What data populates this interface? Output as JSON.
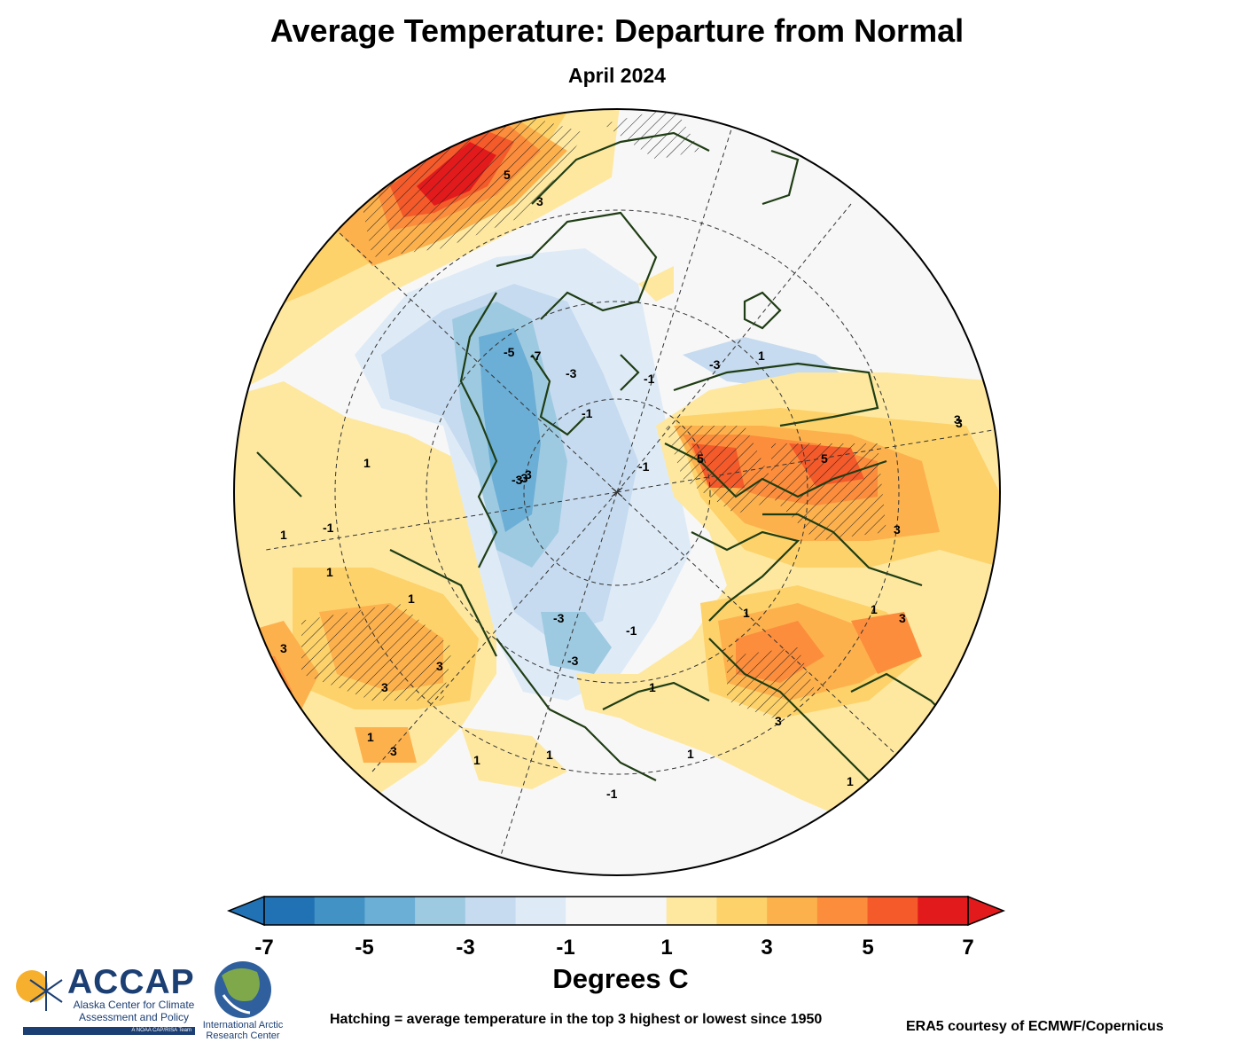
{
  "title": "Average Temperature: Departure from Normal",
  "subtitle": "April 2024",
  "colorbar": {
    "label": "Degrees C",
    "ticks": [
      "-7",
      "-5",
      "-3",
      "-1",
      "1",
      "3",
      "5",
      "7"
    ],
    "colors": [
      "#2171b5",
      "#4292c6",
      "#6baed6",
      "#9ecae1",
      "#c6dbef",
      "#deebf7",
      "#f7f7f7",
      "#f7f7f7",
      "#fee8a0",
      "#fdd26a",
      "#fdb14d",
      "#fc8d3c",
      "#f45a2a",
      "#e31a1c"
    ],
    "under_color": "#2171b5",
    "over_color": "#e31a1c"
  },
  "contour_labels": [
    "5",
    "3",
    "-5",
    "-7",
    "-3",
    "-1",
    "1",
    "3",
    "5",
    "5",
    "3",
    "1",
    "-3",
    "-3",
    "-1",
    "-1",
    "-3",
    "-3",
    "-1",
    "1",
    "1",
    "1",
    "-1",
    "1",
    "1",
    "3",
    "3",
    "3",
    "1",
    "3",
    "3",
    "1",
    "1",
    "-1",
    "1",
    "3",
    "1",
    "-3",
    "1",
    "3",
    "3"
  ],
  "hatching_note": "Hatching = average temperature in the top 3 highest or lowest since 1950",
  "credit": "ERA5 courtesy of ECMWF/Copernicus",
  "logos": {
    "accap_name": "ACCAP",
    "accap_full": "Alaska Center for Climate Assessment and Policy",
    "accap_tag": "A NOAA CAP/RISA Team",
    "iarc_name": "International Arctic Research Center"
  }
}
